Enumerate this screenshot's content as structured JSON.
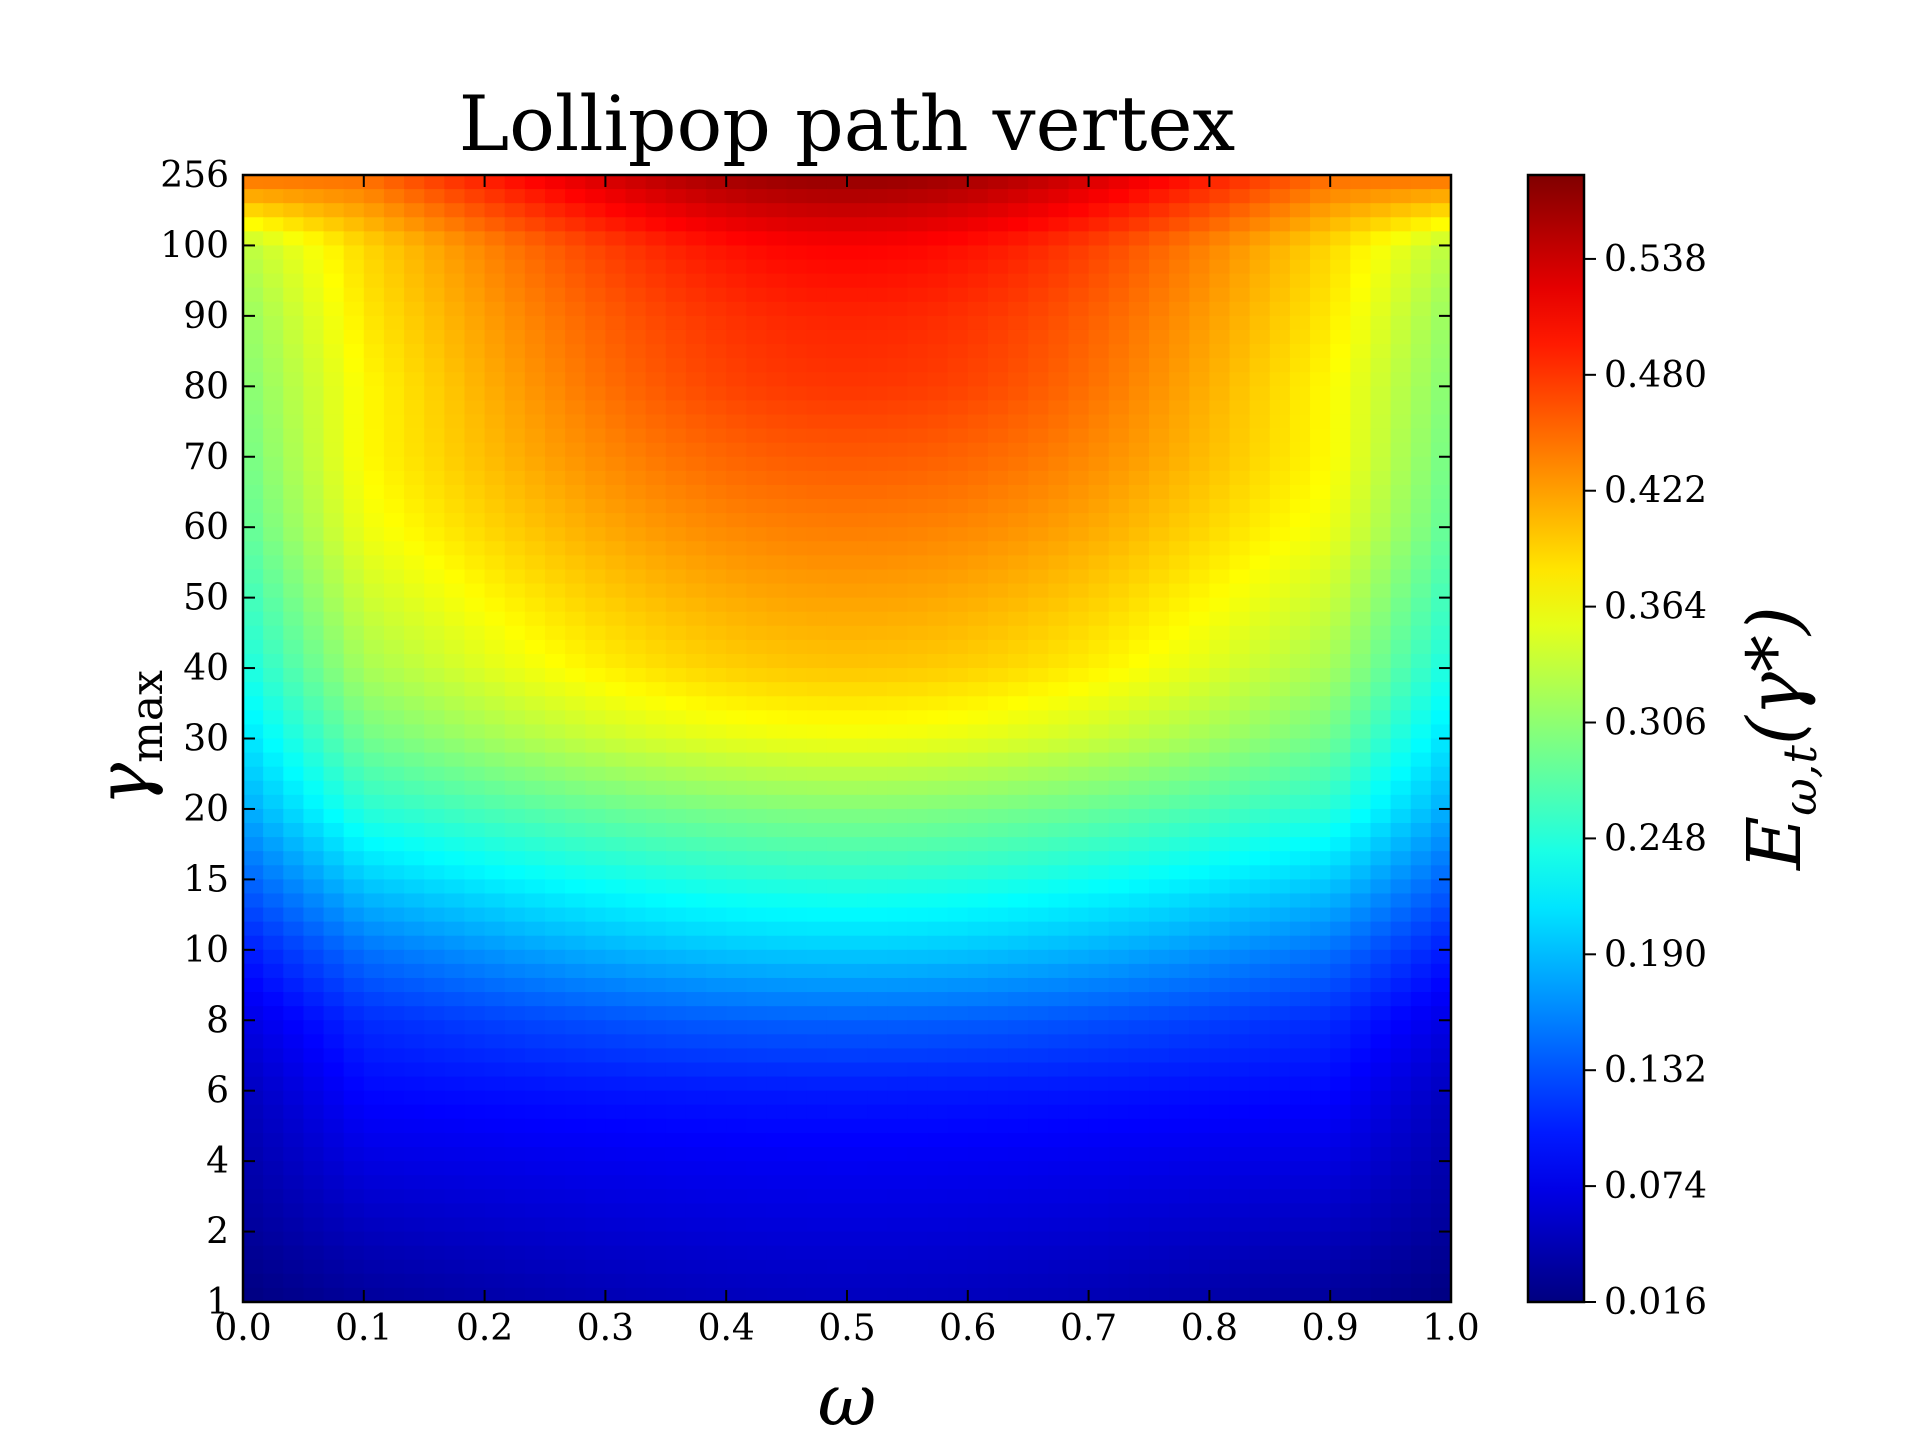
{
  "chart_data": {
    "type": "heatmap",
    "title": "Lollipop path vertex",
    "xlabel": "ω",
    "ylabel": {
      "main": "γ",
      "sub": "max"
    },
    "x_ticks": [
      "0.0",
      "0.1",
      "0.2",
      "0.3",
      "0.4",
      "0.5",
      "0.6",
      "0.7",
      "0.8",
      "0.9",
      "1.0"
    ],
    "x_range": [
      0.0,
      1.0
    ],
    "y_ticks": [
      "1",
      "2",
      "4",
      "6",
      "8",
      "10",
      "15",
      "20",
      "30",
      "40",
      "50",
      "60",
      "70",
      "80",
      "90",
      "100",
      "256"
    ],
    "y_scale": "categorical",
    "colormap": "jet",
    "colorbar": {
      "label": {
        "main": "E",
        "sub": "ω,t",
        "arg": "(γ*)"
      },
      "ticks": [
        "0.016",
        "0.074",
        "0.132",
        "0.190",
        "0.248",
        "0.306",
        "0.364",
        "0.422",
        "0.480",
        "0.538"
      ],
      "range": [
        0.016,
        0.58
      ]
    },
    "values_by_gamma_level": {
      "gamma": [
        "1",
        "2",
        "4",
        "6",
        "8",
        "10",
        "15",
        "20",
        "30",
        "40",
        "50",
        "60",
        "70",
        "80",
        "90",
        "100",
        "256"
      ],
      "omega_0_0": [
        0.016,
        0.03,
        0.04,
        0.05,
        0.07,
        0.1,
        0.14,
        0.18,
        0.21,
        0.24,
        0.26,
        0.28,
        0.29,
        0.3,
        0.31,
        0.33,
        0.45
      ],
      "omega_0_1": [
        0.03,
        0.05,
        0.07,
        0.09,
        0.11,
        0.15,
        0.2,
        0.25,
        0.29,
        0.32,
        0.34,
        0.36,
        0.37,
        0.37,
        0.38,
        0.39,
        0.45
      ],
      "omega_0_5": [
        0.05,
        0.065,
        0.08,
        0.1,
        0.14,
        0.2,
        0.25,
        0.3,
        0.36,
        0.4,
        0.42,
        0.44,
        0.46,
        0.48,
        0.49,
        0.51,
        0.57
      ]
    }
  }
}
